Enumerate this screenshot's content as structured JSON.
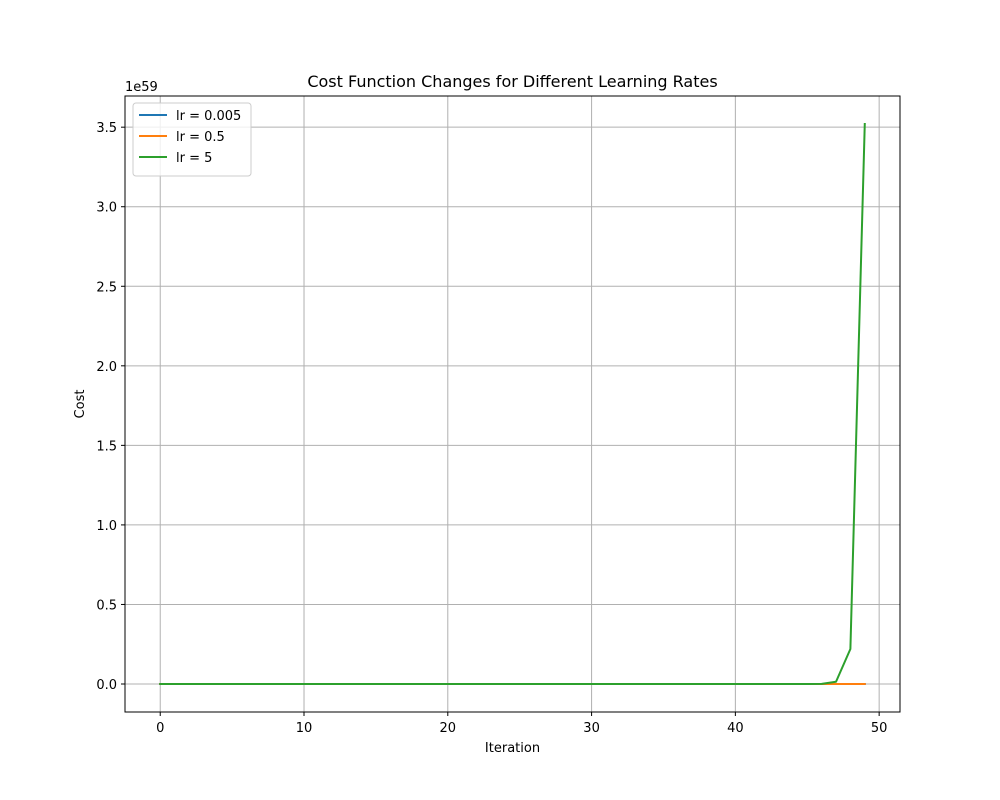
{
  "chart_data": {
    "type": "line",
    "title": "Cost Function Changes for Different Learning Rates",
    "xlabel": "Iteration",
    "ylabel": "Cost",
    "y_offset_text": "1e59",
    "y_scale_exponent": 59,
    "xlim": [
      -2.45,
      51.45
    ],
    "ylim": [
      -0.176,
      3.696
    ],
    "x_ticks": [
      0,
      10,
      20,
      30,
      40,
      50
    ],
    "x_tick_labels": [
      "0",
      "10",
      "20",
      "30",
      "40",
      "50"
    ],
    "y_ticks": [
      0.0,
      0.5,
      1.0,
      1.5,
      2.0,
      2.5,
      3.0,
      3.5
    ],
    "y_tick_labels": [
      "0.0",
      "0.5",
      "1.0",
      "1.5",
      "2.0",
      "2.5",
      "3.0",
      "3.5"
    ],
    "grid": true,
    "legend_position": "top-left",
    "x": [
      0,
      1,
      2,
      3,
      4,
      5,
      6,
      7,
      8,
      9,
      10,
      11,
      12,
      13,
      14,
      15,
      16,
      17,
      18,
      19,
      20,
      21,
      22,
      23,
      24,
      25,
      26,
      27,
      28,
      29,
      30,
      31,
      32,
      33,
      34,
      35,
      36,
      37,
      38,
      39,
      40,
      41,
      42,
      43,
      44,
      45,
      46,
      47,
      48,
      49
    ],
    "series": [
      {
        "name": "lr = 0.005",
        "color": "#1f77b4",
        "values": [
          0,
          0,
          0,
          0,
          0,
          0,
          0,
          0,
          0,
          0,
          0,
          0,
          0,
          0,
          0,
          0,
          0,
          0,
          0,
          0,
          0,
          0,
          0,
          0,
          0,
          0,
          0,
          0,
          0,
          0,
          0,
          0,
          0,
          0,
          0,
          0,
          0,
          0,
          0,
          0,
          0,
          0,
          0,
          0,
          0,
          0,
          0,
          0,
          0,
          0
        ]
      },
      {
        "name": "lr = 0.5",
        "color": "#ff7f0e",
        "values": [
          0,
          0,
          0,
          0,
          0,
          0,
          0,
          0,
          0,
          0,
          0,
          0,
          0,
          0,
          0,
          0,
          0,
          0,
          0,
          0,
          0,
          0,
          0,
          0,
          0,
          0,
          0,
          0,
          0,
          0,
          0,
          0,
          0,
          0,
          0,
          0,
          0,
          0,
          0,
          0,
          0,
          0,
          0,
          0,
          0,
          0,
          0,
          0,
          0,
          0
        ]
      },
      {
        "name": "lr = 5",
        "color": "#2ca02c",
        "values": [
          0,
          0,
          0,
          0,
          0,
          0,
          0,
          0,
          0,
          0,
          0,
          0,
          0,
          0,
          0,
          0,
          0,
          0,
          0,
          0,
          0,
          0,
          0,
          0,
          0,
          0,
          0,
          0,
          0,
          0,
          0,
          0,
          0,
          0,
          0,
          0,
          0,
          0,
          0,
          0,
          0,
          0,
          0,
          0,
          0,
          0,
          0.001,
          0.014,
          0.22,
          3.52
        ]
      }
    ]
  }
}
